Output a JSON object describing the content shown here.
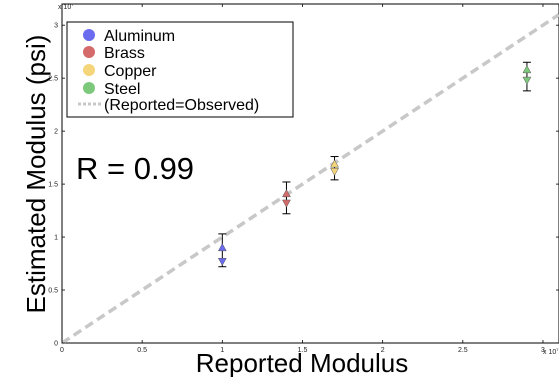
{
  "chart_data": {
    "type": "scatter",
    "xlabel": "Reported Modulus",
    "ylabel": "Estimated Modulus (psi)",
    "x_exponent_label": "x 10",
    "x_exponent_power": "7",
    "y_exponent_label": "x 10",
    "y_exponent_power": "7",
    "xlim": [
      0,
      31000000
    ],
    "ylim": [
      0,
      32000000
    ],
    "x_ticks": [
      0,
      5000000,
      10000000,
      15000000,
      20000000,
      25000000,
      30000000
    ],
    "x_tick_labels": [
      "0",
      "0.5",
      "1",
      "1.5",
      "2",
      "2.5",
      "3"
    ],
    "y_ticks": [
      0,
      5000000,
      10000000,
      15000000,
      20000000,
      25000000,
      30000000
    ],
    "y_tick_labels": [
      "0",
      "0.5",
      "1",
      "1.5",
      "2",
      "2.5",
      "3"
    ],
    "grid": false,
    "legend_position": "top-left",
    "annotation": "R = 0.99",
    "reference_line": {
      "name": "(Reported=Observed)",
      "color": "#c8c8c8",
      "points": [
        [
          0,
          0
        ],
        [
          31000000,
          31000000
        ]
      ]
    },
    "series": [
      {
        "name": "Aluminum",
        "color": "#6b6bef",
        "points": [
          {
            "x": 10000000,
            "y": 9000000,
            "marker": "triangle-up"
          },
          {
            "x": 10000000,
            "y": 7700000,
            "marker": "triangle-down"
          }
        ],
        "error_bar": {
          "x": 10000000,
          "low": 7200000,
          "high": 10300000
        }
      },
      {
        "name": "Brass",
        "color": "#d46a6a",
        "points": [
          {
            "x": 14000000,
            "y": 14100000,
            "marker": "triangle-up"
          },
          {
            "x": 14000000,
            "y": 13200000,
            "marker": "triangle-down"
          }
        ],
        "error_bar": {
          "x": 14000000,
          "low": 12200000,
          "high": 15200000
        }
      },
      {
        "name": "Copper",
        "color": "#f5d57a",
        "points": [
          {
            "x": 17000000,
            "y": 16900000,
            "marker": "triangle-up"
          },
          {
            "x": 17000000,
            "y": 16200000,
            "marker": "triangle-down"
          }
        ],
        "error_bar": {
          "x": 17000000,
          "low": 15400000,
          "high": 17600000
        }
      },
      {
        "name": "Steel",
        "color": "#7cc97c",
        "points": [
          {
            "x": 29000000,
            "y": 25800000,
            "marker": "triangle-up"
          },
          {
            "x": 29000000,
            "y": 24800000,
            "marker": "triangle-down"
          }
        ],
        "error_bar": {
          "x": 29000000,
          "low": 23800000,
          "high": 26500000
        }
      }
    ]
  }
}
